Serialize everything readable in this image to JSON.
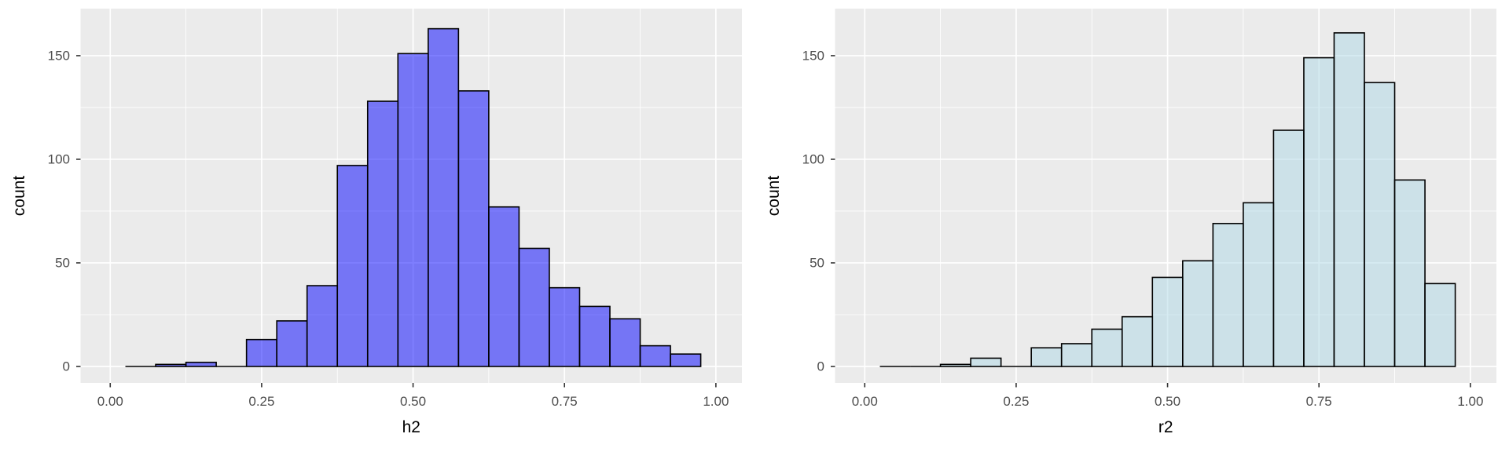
{
  "figure": {
    "background": "#ffffff",
    "panel_background": "#ebebeb",
    "grid_color": "#ffffff",
    "tick_mark_color": "#333333",
    "tick_label_color": "#4d4d4d",
    "axis_title_color": "#000000"
  },
  "chart_data": [
    {
      "type": "bar",
      "subtype": "histogram",
      "title": "",
      "xlabel": "h2",
      "ylabel": "count",
      "legend": "none",
      "grid": true,
      "bar_fill": "rgba(0,0,255,0.5)",
      "bar_fill_rendered": "#7577f3",
      "bar_stroke": "#000000",
      "bin_start": 0.025,
      "bin_width": 0.05,
      "counts": [
        0,
        1,
        2,
        0,
        13,
        22,
        39,
        97,
        128,
        151,
        163,
        133,
        77,
        57,
        38,
        29,
        23,
        10,
        6
      ],
      "x_tick_labels": [
        "0.00",
        "0.25",
        "0.50",
        "0.75",
        "1.00"
      ],
      "x_tick_values": [
        0,
        0.25,
        0.5,
        0.75,
        1.0
      ],
      "y_tick_labels": [
        "0",
        "50",
        "100",
        "150"
      ],
      "y_tick_values": [
        0,
        50,
        100,
        150
      ],
      "x_minor_values": [
        0.125,
        0.375,
        0.625,
        0.875
      ],
      "y_minor_values": [
        25,
        75,
        125
      ],
      "xlim": [
        -0.049,
        1.043
      ],
      "ylim": [
        -7.95,
        172.7
      ]
    },
    {
      "type": "bar",
      "subtype": "histogram",
      "title": "",
      "xlabel": "r2",
      "ylabel": "count",
      "legend": "none",
      "grid": true,
      "bar_fill": "rgba(173,216,230,0.5)",
      "bar_fill_rendered": "#cce1e8",
      "bar_stroke": "#000000",
      "bin_start": 0.025,
      "bin_width": 0.05,
      "counts": [
        0,
        0,
        1,
        4,
        0,
        9,
        11,
        18,
        24,
        43,
        51,
        69,
        79,
        114,
        149,
        161,
        137,
        90,
        40
      ],
      "x_tick_labels": [
        "0.00",
        "0.25",
        "0.50",
        "0.75",
        "1.00"
      ],
      "x_tick_values": [
        0,
        0.25,
        0.5,
        0.75,
        1.0
      ],
      "y_tick_labels": [
        "0",
        "50",
        "100",
        "150"
      ],
      "y_tick_values": [
        0,
        50,
        100,
        150
      ],
      "x_minor_values": [
        0.125,
        0.375,
        0.625,
        0.875
      ],
      "y_minor_values": [
        25,
        75,
        125
      ],
      "xlim": [
        -0.049,
        1.043
      ],
      "ylim": [
        -7.95,
        172.7
      ]
    }
  ]
}
